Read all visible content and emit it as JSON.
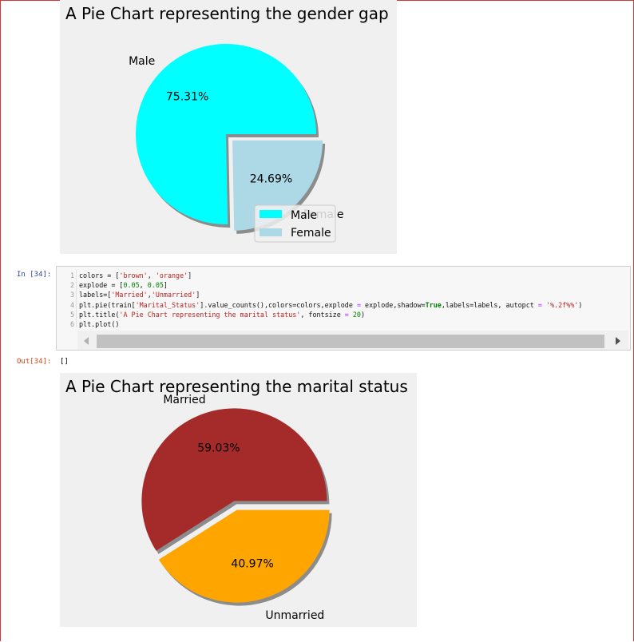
{
  "notebook": {
    "in_prompt": "In [34]:",
    "out_prompt": "Out[34]:",
    "out_text": "[]",
    "code_lines": [
      {
        "n": "1",
        "html": "colors = [<span class='str'>'brown'</span>, <span class='str'>'orange'</span>]"
      },
      {
        "n": "2",
        "html": "explode = [<span class='num'>0.05</span>, <span class='num'>0.05</span>]"
      },
      {
        "n": "3",
        "html": "labels=[<span class='str'>'Married'</span>,<span class='str'>'Unmarried'</span>]"
      },
      {
        "n": "4",
        "html": "plt.pie(train[<span class='str'>'Marital_Status'</span>].value_counts(),colors=colors,explode <span class='op'>=</span> explode,shadow=<span class='kw'>True</span>,labels=labels, autopct <span class='op'>=</span> <span class='str'>'%.2f%%'</span>)"
      },
      {
        "n": "5",
        "html": "plt.title(<span class='str'>'A Pie Chart representing the marital status'</span>, fontsize <span class='op'>=</span> <span class='num'>20</span>)"
      },
      {
        "n": "6",
        "html": "plt.plot()"
      }
    ]
  },
  "chart_data": [
    {
      "type": "pie",
      "title": "A Pie Chart representing the gender gap",
      "labels": [
        "Male",
        "Female"
      ],
      "values": [
        75.31,
        24.69
      ],
      "autopct": [
        "75.31%",
        "24.69%"
      ],
      "colors": [
        "#00ffff",
        "#add8e6"
      ],
      "legend": [
        "Male",
        "Female"
      ],
      "legend_placement": "lower-right",
      "shadow": true
    },
    {
      "type": "pie",
      "title": "A Pie Chart representing the marital status",
      "labels": [
        "Married",
        "Unmarried"
      ],
      "values": [
        59.03,
        40.97
      ],
      "autopct": [
        "59.03%",
        "40.97%"
      ],
      "colors": [
        "#a52a2a",
        "#ffa500"
      ],
      "shadow": true
    }
  ]
}
